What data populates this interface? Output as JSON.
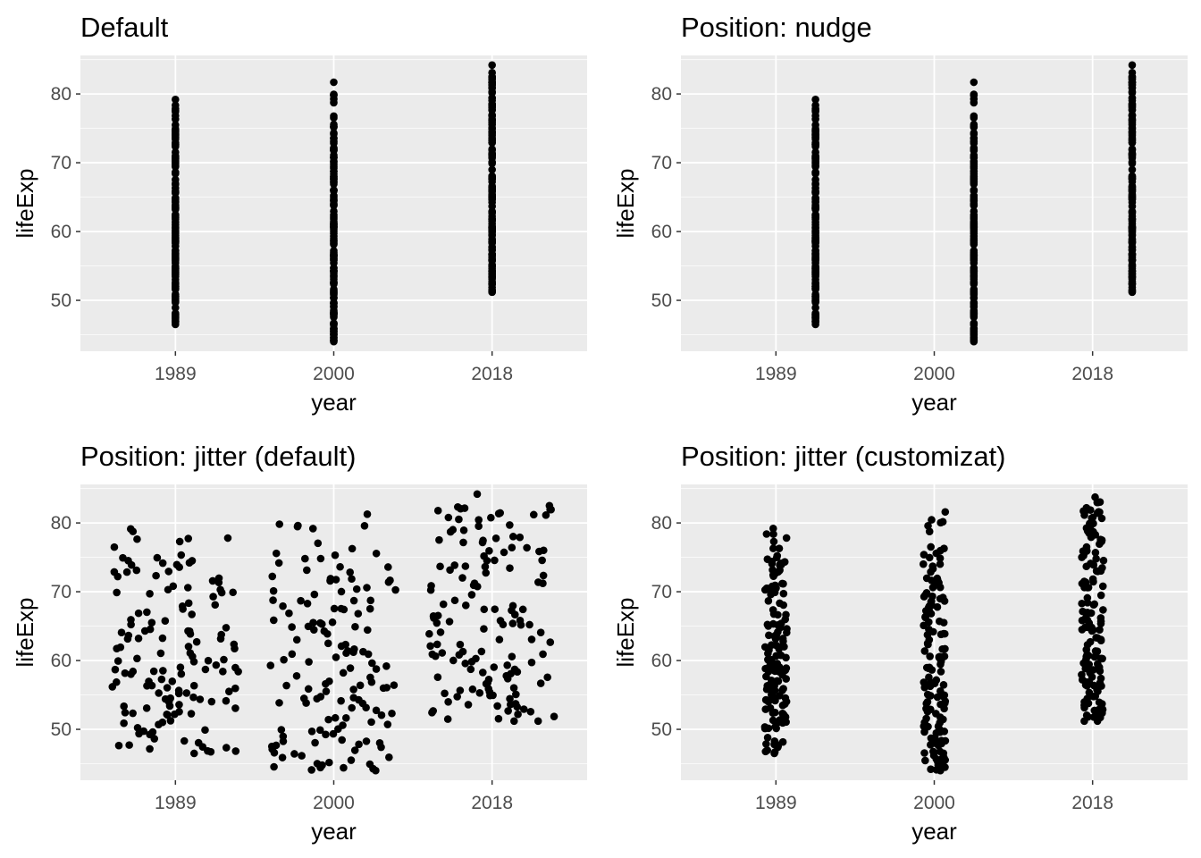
{
  "chart_data": [
    {
      "type": "scatter",
      "title": "Default",
      "xlabel": "year",
      "ylabel": "lifeExp",
      "x_categories": [
        "1989",
        "2000",
        "2018"
      ],
      "y_ticks": [
        50,
        60,
        70,
        80
      ],
      "ylim": [
        42.6,
        85.6
      ],
      "position": "identity",
      "grid": true,
      "series": [
        {
          "x": "1989",
          "y_range": [
            46.5,
            79.2
          ]
        },
        {
          "x": "2000",
          "y_range": [
            44.0,
            81.7
          ]
        },
        {
          "x": "2018",
          "y_range": [
            51.2,
            84.2
          ]
        }
      ]
    },
    {
      "type": "scatter",
      "title": "Position: nudge",
      "xlabel": "year",
      "ylabel": "lifeExp",
      "x_categories": [
        "1989",
        "2000",
        "2018"
      ],
      "y_ticks": [
        50,
        60,
        70,
        80
      ],
      "ylim": [
        42.6,
        85.6
      ],
      "position": "nudge",
      "nudge_x": 0.25,
      "grid": true,
      "series": [
        {
          "x": "1989",
          "y_range": [
            46.5,
            79.2
          ]
        },
        {
          "x": "2000",
          "y_range": [
            44.0,
            81.7
          ]
        },
        {
          "x": "2018",
          "y_range": [
            51.2,
            84.2
          ]
        }
      ]
    },
    {
      "type": "scatter",
      "title": "Position: jitter (default)",
      "xlabel": "year",
      "ylabel": "lifeExp",
      "x_categories": [
        "1989",
        "2000",
        "2018"
      ],
      "y_ticks": [
        50,
        60,
        70,
        80
      ],
      "ylim": [
        42.6,
        85.6
      ],
      "position": "jitter",
      "jitter_width": 0.4,
      "grid": true,
      "series": [
        {
          "x": "1989",
          "y_range": [
            46.5,
            79.2
          ]
        },
        {
          "x": "2000",
          "y_range": [
            44.0,
            81.7
          ]
        },
        {
          "x": "2018",
          "y_range": [
            51.2,
            84.2
          ]
        }
      ]
    },
    {
      "type": "scatter",
      "title": "Position: jitter (customizat)",
      "xlabel": "year",
      "ylabel": "lifeExp",
      "x_categories": [
        "1989",
        "2000",
        "2018"
      ],
      "y_ticks": [
        50,
        60,
        70,
        80
      ],
      "ylim": [
        42.6,
        85.6
      ],
      "position": "jitter",
      "jitter_width": 0.07,
      "grid": true,
      "series": [
        {
          "x": "1989",
          "y_range": [
            46.5,
            79.2
          ]
        },
        {
          "x": "2000",
          "y_range": [
            44.0,
            81.7
          ]
        },
        {
          "x": "2018",
          "y_range": [
            51.2,
            84.2
          ]
        }
      ]
    }
  ],
  "colors": {
    "panel_background": "#ebebeb",
    "grid_major": "#ffffff",
    "points": "#000000",
    "tick_text": "#4d4d4d"
  }
}
